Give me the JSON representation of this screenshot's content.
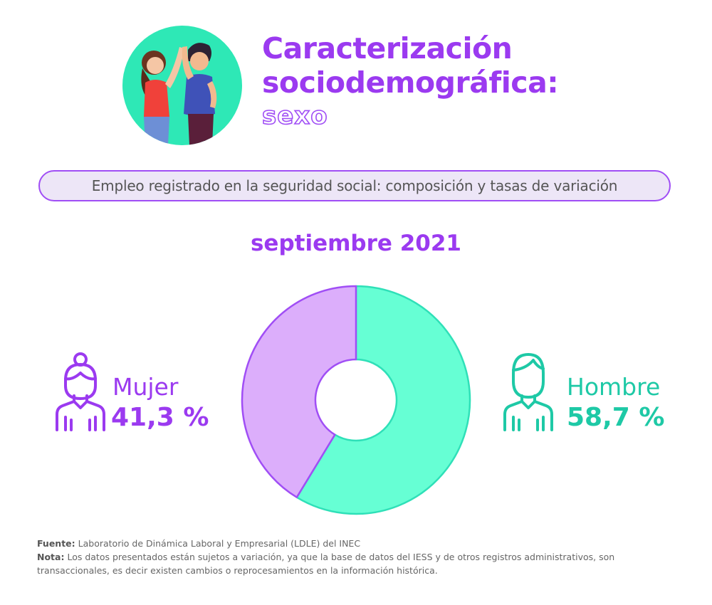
{
  "header": {
    "title_line1": "Caracterización",
    "title_line2": "sociodemográfica:",
    "subtitle": "sexo"
  },
  "section": {
    "pill_label": "Empleo registrado en la seguridad social: composición y tasas de variación",
    "period": "septiembre 2021"
  },
  "colors": {
    "purple": "#9b3af0",
    "mujer": "#dcaefb",
    "hombre": "#66ffd4",
    "hombre_text": "#1ec9a6"
  },
  "chart_data": {
    "type": "pie",
    "donut": true,
    "title": "septiembre 2021",
    "categories": [
      "Mujer",
      "Hombre"
    ],
    "values": [
      41.3,
      58.7
    ],
    "value_labels": [
      "41,3 %",
      "58,7 %"
    ],
    "unit": "%",
    "colors": [
      "#dcaefb",
      "#66ffd4"
    ],
    "legend_placement": "left-right"
  },
  "labels": {
    "mujer_name": "Mujer",
    "mujer_value": "41,3 %",
    "hombre_name": "Hombre",
    "hombre_value": "58,7 %"
  },
  "icons": {
    "hero": "couple-high-five-illustration",
    "mujer": "woman-person-icon",
    "hombre": "man-person-icon"
  },
  "footer": {
    "fuente_label": "Fuente:",
    "fuente_text": "Laboratorio de Dinámica Laboral y Empresarial (LDLE) del INEC",
    "nota_label": "Nota:",
    "nota_text": "Los datos presentados están sujetos a variación, ya que la base de datos del IESS y de otros registros administrativos, son transaccionales, es decir existen cambios o reprocesamientos en la información histórica."
  }
}
